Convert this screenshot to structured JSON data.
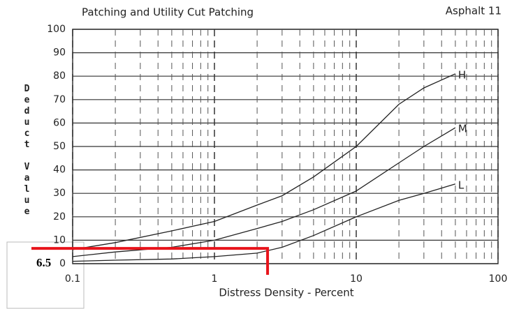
{
  "chart_data": {
    "type": "line",
    "title": "Patching and Utility Cut Patching",
    "subtitle": "Asphalt 11",
    "x_label": "Distress Density - Percent",
    "y_label": "Deduct Value",
    "x": [
      0.1,
      0.2,
      0.5,
      1,
      2,
      3,
      5,
      10,
      20,
      30,
      50
    ],
    "series": [
      {
        "name": "H",
        "color": "#222222",
        "values": [
          6,
          9,
          14,
          18,
          25,
          29,
          37,
          50,
          68,
          75,
          81
        ]
      },
      {
        "name": "M",
        "color": "#222222",
        "values": [
          3,
          5,
          7,
          10,
          15,
          18,
          23,
          31,
          43,
          50,
          58
        ]
      },
      {
        "name": "L",
        "color": "#222222",
        "values": [
          1,
          1.5,
          2,
          3,
          4.5,
          7,
          12,
          20,
          27,
          30,
          34
        ]
      }
    ],
    "xscale": "log",
    "xlim": [
      0.1,
      100
    ],
    "xticks": [
      0.1,
      1,
      10,
      100
    ],
    "ylim": [
      0,
      100
    ],
    "yticks": [
      0,
      10,
      20,
      30,
      40,
      50,
      60,
      70,
      80,
      90,
      100
    ],
    "grid": true,
    "annotation": {
      "text": "6.5",
      "y": 6.5,
      "x": 2.37,
      "color": "#e8141b"
    }
  }
}
